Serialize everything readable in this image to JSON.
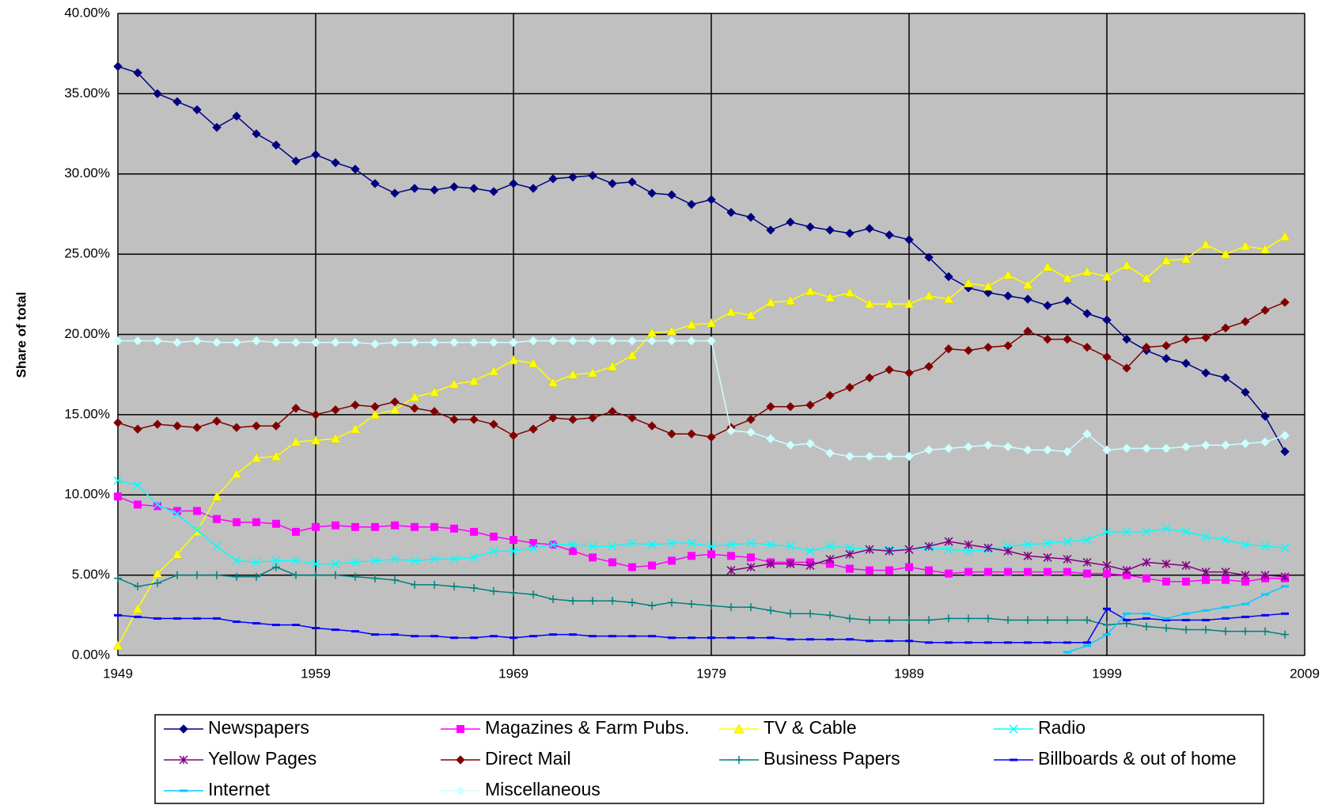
{
  "chart_data": {
    "type": "line",
    "ylabel": "Share of total",
    "xlim": [
      1949,
      2009
    ],
    "xticks": [
      1949,
      1959,
      1969,
      1979,
      1989,
      1999,
      2009
    ],
    "ylim": [
      0,
      40
    ],
    "yticks": [
      {
        "value": 0,
        "label": "0.00%"
      },
      {
        "value": 5,
        "label": "5.00%"
      },
      {
        "value": 10,
        "label": "10.00%"
      },
      {
        "value": 15,
        "label": "15.00%"
      },
      {
        "value": 20,
        "label": "20.00%"
      },
      {
        "value": 25,
        "label": "25.00%"
      },
      {
        "value": 30,
        "label": "30.00%"
      },
      {
        "value": 35,
        "label": "35.00%"
      },
      {
        "value": 40,
        "label": "40.00%"
      }
    ],
    "grid": true,
    "legend": "bottom",
    "x": [
      1949,
      1950,
      1951,
      1952,
      1953,
      1954,
      1955,
      1956,
      1957,
      1958,
      1959,
      1960,
      1961,
      1962,
      1963,
      1964,
      1965,
      1966,
      1967,
      1968,
      1969,
      1970,
      1971,
      1972,
      1973,
      1974,
      1975,
      1976,
      1977,
      1978,
      1979,
      1980,
      1981,
      1982,
      1983,
      1984,
      1985,
      1986,
      1987,
      1988,
      1989,
      1990,
      1991,
      1992,
      1993,
      1994,
      1995,
      1996,
      1997,
      1998,
      1999,
      2000,
      2001,
      2002,
      2003,
      2004,
      2005,
      2006,
      2007,
      2008
    ],
    "series": [
      {
        "name": "Newspapers",
        "color": "#000080",
        "marker": "diamond",
        "values": [
          36.7,
          36.3,
          35.0,
          34.5,
          34.0,
          32.9,
          33.6,
          32.5,
          31.8,
          30.8,
          31.2,
          30.7,
          30.3,
          29.4,
          28.8,
          29.1,
          29.0,
          29.2,
          29.1,
          28.9,
          29.4,
          29.1,
          29.7,
          29.8,
          29.9,
          29.4,
          29.5,
          28.8,
          28.7,
          28.1,
          28.4,
          27.6,
          27.3,
          26.5,
          27.0,
          26.7,
          26.5,
          26.3,
          26.6,
          26.2,
          25.9,
          24.8,
          23.6,
          22.9,
          22.6,
          22.4,
          22.2,
          21.8,
          22.1,
          21.3,
          20.9,
          19.7,
          19.0,
          18.5,
          18.2,
          17.6,
          17.3,
          16.4,
          14.9,
          12.7
        ]
      },
      {
        "name": "Magazines & Farm Pubs.",
        "color": "#ff00ff",
        "marker": "square",
        "values": [
          9.9,
          9.4,
          9.3,
          9.0,
          9.0,
          8.5,
          8.3,
          8.3,
          8.2,
          7.7,
          8.0,
          8.1,
          8.0,
          8.0,
          8.1,
          8.0,
          8.0,
          7.9,
          7.7,
          7.4,
          7.2,
          7.0,
          6.9,
          6.5,
          6.1,
          5.8,
          5.5,
          5.6,
          5.9,
          6.2,
          6.3,
          6.2,
          6.1,
          5.8,
          5.8,
          5.8,
          5.7,
          5.4,
          5.3,
          5.3,
          5.5,
          5.3,
          5.1,
          5.2,
          5.2,
          5.2,
          5.2,
          5.2,
          5.2,
          5.1,
          5.1,
          5.0,
          4.8,
          4.6,
          4.6,
          4.7,
          4.7,
          4.6,
          4.8,
          4.8
        ]
      },
      {
        "name": "TV & Cable",
        "color": "#ffff00",
        "marker": "triangle",
        "values": [
          0.6,
          2.9,
          5.1,
          6.3,
          7.7,
          9.9,
          11.3,
          12.3,
          12.4,
          13.3,
          13.4,
          13.5,
          14.1,
          15.0,
          15.3,
          16.1,
          16.4,
          16.9,
          17.1,
          17.7,
          18.4,
          18.2,
          17.0,
          17.5,
          17.6,
          18.0,
          18.7,
          20.1,
          20.2,
          20.6,
          20.7,
          21.4,
          21.2,
          22.0,
          22.1,
          22.7,
          22.3,
          22.6,
          21.9,
          21.9,
          21.9,
          22.4,
          22.2,
          23.2,
          23.0,
          23.7,
          23.1,
          24.2,
          23.5,
          23.9,
          23.6,
          24.3,
          23.5,
          24.6,
          24.7,
          25.6,
          25.0,
          25.5,
          25.3,
          26.1
        ]
      },
      {
        "name": "Radio",
        "color": "#00ffff",
        "marker": "x",
        "values": [
          10.9,
          10.6,
          9.4,
          8.8,
          7.8,
          6.8,
          5.9,
          5.8,
          5.9,
          5.9,
          5.7,
          5.7,
          5.8,
          5.9,
          6.0,
          5.9,
          6.0,
          6.0,
          6.1,
          6.5,
          6.5,
          6.7,
          6.9,
          6.9,
          6.8,
          6.8,
          7.0,
          6.9,
          7.0,
          7.0,
          6.8,
          6.9,
          7.0,
          6.9,
          6.8,
          6.5,
          6.8,
          6.7,
          6.6,
          6.6,
          6.6,
          6.7,
          6.6,
          6.5,
          6.6,
          6.8,
          6.9,
          7.0,
          7.1,
          7.2,
          7.7,
          7.7,
          7.7,
          7.9,
          7.7,
          7.4,
          7.2,
          6.9,
          6.8,
          6.7
        ]
      },
      {
        "name": "Yellow Pages",
        "color": "#800080",
        "marker": "asterisk",
        "values": [
          null,
          null,
          null,
          null,
          null,
          null,
          null,
          null,
          null,
          null,
          null,
          null,
          null,
          null,
          null,
          null,
          null,
          null,
          null,
          null,
          null,
          null,
          null,
          null,
          null,
          null,
          null,
          null,
          null,
          null,
          null,
          5.3,
          5.5,
          5.7,
          5.7,
          5.6,
          6.0,
          6.3,
          6.6,
          6.5,
          6.6,
          6.8,
          7.1,
          6.9,
          6.7,
          6.5,
          6.2,
          6.1,
          6.0,
          5.8,
          5.6,
          5.3,
          5.8,
          5.7,
          5.6,
          5.2,
          5.2,
          5.0,
          5.0,
          4.9
        ]
      },
      {
        "name": "Direct Mail",
        "color": "#800000",
        "marker": "diamond",
        "values": [
          14.5,
          14.1,
          14.4,
          14.3,
          14.2,
          14.6,
          14.2,
          14.3,
          14.3,
          15.4,
          15.0,
          15.3,
          15.6,
          15.5,
          15.8,
          15.4,
          15.2,
          14.7,
          14.7,
          14.4,
          13.7,
          14.1,
          14.8,
          14.7,
          14.8,
          15.2,
          14.8,
          14.3,
          13.8,
          13.8,
          13.6,
          14.2,
          14.7,
          15.5,
          15.5,
          15.6,
          16.2,
          16.7,
          17.3,
          17.8,
          17.6,
          18.0,
          19.1,
          19.0,
          19.2,
          19.3,
          20.2,
          19.7,
          19.7,
          19.2,
          18.6,
          17.9,
          19.2,
          19.3,
          19.7,
          19.8,
          20.4,
          20.8,
          21.5,
          22.0
        ]
      },
      {
        "name": "Business Papers",
        "color": "#008080",
        "marker": "plus",
        "values": [
          4.8,
          4.3,
          4.5,
          5.0,
          5.0,
          5.0,
          4.9,
          4.9,
          5.5,
          5.0,
          5.0,
          5.0,
          4.9,
          4.8,
          4.7,
          4.4,
          4.4,
          4.3,
          4.2,
          4.0,
          3.9,
          3.8,
          3.5,
          3.4,
          3.4,
          3.4,
          3.3,
          3.1,
          3.3,
          3.2,
          3.1,
          3.0,
          3.0,
          2.8,
          2.6,
          2.6,
          2.5,
          2.3,
          2.2,
          2.2,
          2.2,
          2.2,
          2.3,
          2.3,
          2.3,
          2.2,
          2.2,
          2.2,
          2.2,
          2.2,
          1.9,
          2.0,
          1.8,
          1.7,
          1.6,
          1.6,
          1.5,
          1.5,
          1.5,
          1.3
        ]
      },
      {
        "name": "Billboards & out of home",
        "color": "#0000ff",
        "marker": "dash",
        "values": [
          2.5,
          2.4,
          2.3,
          2.3,
          2.3,
          2.3,
          2.1,
          2.0,
          1.9,
          1.9,
          1.7,
          1.6,
          1.5,
          1.3,
          1.3,
          1.2,
          1.2,
          1.1,
          1.1,
          1.2,
          1.1,
          1.2,
          1.3,
          1.3,
          1.2,
          1.2,
          1.2,
          1.2,
          1.1,
          1.1,
          1.1,
          1.1,
          1.1,
          1.1,
          1.0,
          1.0,
          1.0,
          1.0,
          0.9,
          0.9,
          0.9,
          0.8,
          0.8,
          0.8,
          0.8,
          0.8,
          0.8,
          0.8,
          0.8,
          0.8,
          2.9,
          2.2,
          2.3,
          2.2,
          2.2,
          2.2,
          2.3,
          2.4,
          2.5,
          2.6
        ]
      },
      {
        "name": "Internet",
        "color": "#00ccff",
        "marker": "dash",
        "values": [
          null,
          null,
          null,
          null,
          null,
          null,
          null,
          null,
          null,
          null,
          null,
          null,
          null,
          null,
          null,
          null,
          null,
          null,
          null,
          null,
          null,
          null,
          null,
          null,
          null,
          null,
          null,
          null,
          null,
          null,
          null,
          null,
          null,
          null,
          null,
          null,
          null,
          null,
          null,
          null,
          null,
          null,
          null,
          null,
          null,
          null,
          null,
          null,
          0.2,
          0.6,
          1.3,
          2.6,
          2.6,
          2.3,
          2.6,
          2.8,
          3.0,
          3.2,
          3.8,
          4.3
        ]
      },
      {
        "name": "Miscellaneous",
        "color": "#ccffff",
        "marker": "diamond",
        "values": [
          19.6,
          19.6,
          19.6,
          19.5,
          19.6,
          19.5,
          19.5,
          19.6,
          19.5,
          19.5,
          19.5,
          19.5,
          19.5,
          19.4,
          19.5,
          19.5,
          19.5,
          19.5,
          19.5,
          19.5,
          19.5,
          19.6,
          19.6,
          19.6,
          19.6,
          19.6,
          19.6,
          19.6,
          19.6,
          19.6,
          19.6,
          14.0,
          13.9,
          13.5,
          13.1,
          13.2,
          12.6,
          12.4,
          12.4,
          12.4,
          12.4,
          12.8,
          12.9,
          13.0,
          13.1,
          13.0,
          12.8,
          12.8,
          12.7,
          13.8,
          12.8,
          12.9,
          12.9,
          12.9,
          13.0,
          13.1,
          13.1,
          13.2,
          13.3,
          13.7
        ]
      }
    ]
  }
}
